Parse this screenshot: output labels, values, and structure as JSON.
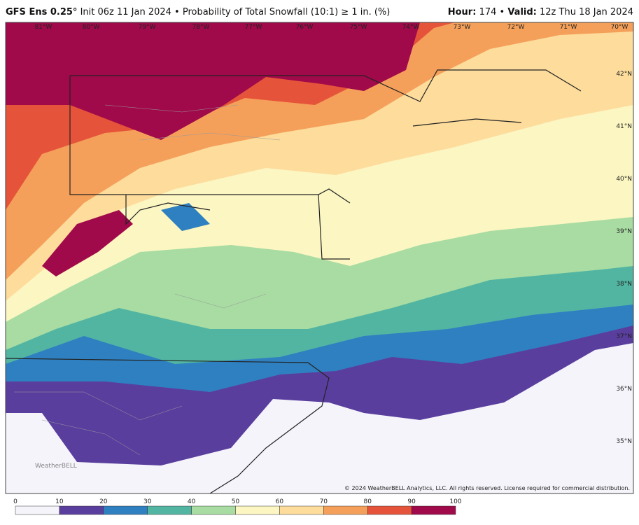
{
  "header": {
    "model": "GFS Ens 0.25°",
    "description": "Init 06z 11 Jan 2024 • Probability of Total Snowfall (10:1) ≥ 1 in. (%)",
    "hour_label": "Hour:",
    "hour": "174 •",
    "valid_label": "Valid:",
    "valid": "12z Thu 18 Jan 2024"
  },
  "map": {
    "lon_labels": [
      "81°W",
      "80°W",
      "79°W",
      "78°W",
      "77°W",
      "76°W",
      "75°W",
      "74°W",
      "73°W",
      "72°W",
      "71°W",
      "70°W"
    ],
    "lat_labels": [
      "42°N",
      "41°N",
      "40°N",
      "39°N",
      "38°N",
      "37°N",
      "36°N",
      "35°N"
    ],
    "watermark": "WeatherBELL",
    "copyright": "© 2024 WeatherBELL Analytics, LLC. All rights reserved. License required for commercial distribution."
  },
  "colorbar": {
    "ticks": [
      0,
      10,
      20,
      30,
      40,
      50,
      60,
      70,
      80,
      90,
      100
    ],
    "colors": [
      "#f4f4fa",
      "#5a3e9e",
      "#2f80c0",
      "#52b5a2",
      "#a8dca2",
      "#fbf6c2",
      "#fddc9c",
      "#f5a05a",
      "#e5543a",
      "#a0094a"
    ]
  }
}
